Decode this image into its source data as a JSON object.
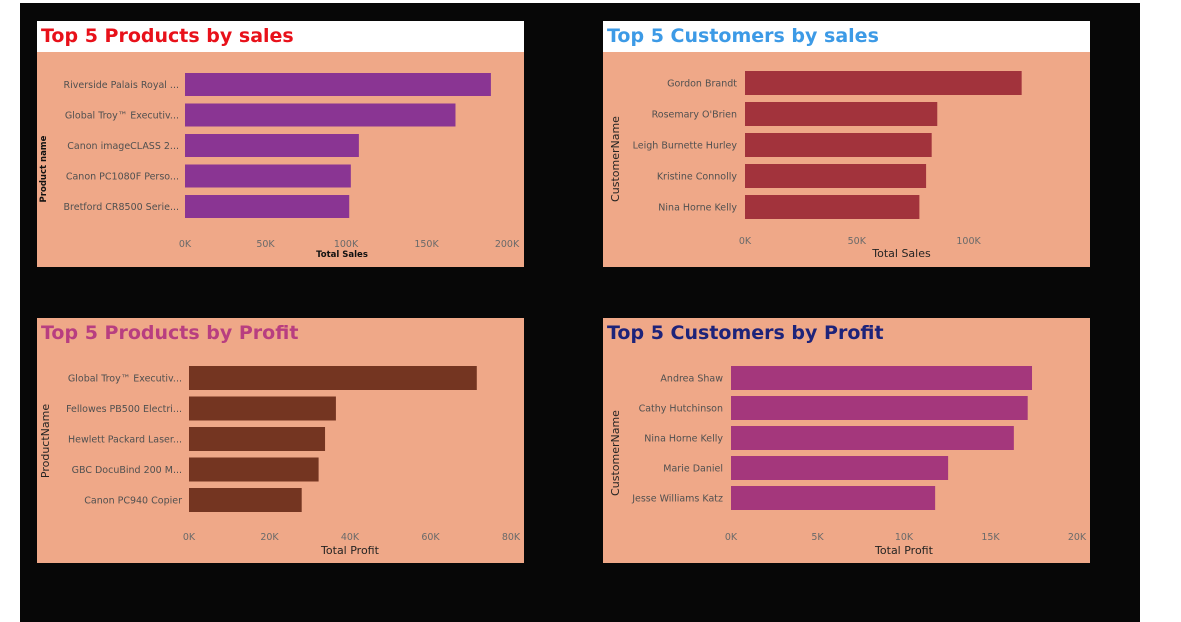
{
  "charts": [
    {
      "title": "Top 5 Products by sales",
      "title_color": "#e8111a",
      "title_bg": "white",
      "bar_color": "#8a3593",
      "axis_style": "bold-small",
      "chart_data": {
        "type": "bar",
        "orientation": "horizontal",
        "categories": [
          "Riverside Palais Royal ...",
          "Global Troy™ Executiv...",
          "Canon imageCLASS 2...",
          "Canon PC1080F Perso...",
          "Bretford CR8500 Serie..."
        ],
        "values": [
          190000,
          168000,
          108000,
          103000,
          102000
        ],
        "xticks": [
          "0K",
          "50K",
          "100K",
          "150K",
          "200K"
        ],
        "xlim": [
          0,
          200000
        ],
        "xlabel": "Total Sales",
        "ylabel": "Product name"
      }
    },
    {
      "title": "Top 5 Customers by sales",
      "title_color": "#3c9ae6",
      "title_bg": "white",
      "bar_color": "#a2333c",
      "axis_style": "normal",
      "chart_data": {
        "type": "bar",
        "orientation": "horizontal",
        "categories": [
          "Gordon Brandt",
          "Rosemary O'Brien",
          "Leigh Burnette Hurley",
          "Kristine Connolly",
          "Nina Horne Kelly"
        ],
        "values": [
          123745,
          86000,
          83500,
          81000,
          78000
        ],
        "xticks": [
          "0K",
          "50K",
          "100K"
        ],
        "xlim": [
          0,
          140000
        ],
        "xlabel": "Total Sales",
        "ylabel": "CustomerName"
      }
    },
    {
      "title": "Top 5 Products by Profit",
      "title_color": "#b83e80",
      "title_bg": "none",
      "bar_color": "#743521",
      "axis_style": "normal",
      "chart_data": {
        "type": "bar",
        "orientation": "horizontal",
        "categories": [
          "Global Troy™ Executiv...",
          "Fellowes PB500 Electri...",
          "Hewlett Packard Laser...",
          "GBC DocuBind 200 M...",
          "Canon PC940 Copier"
        ],
        "values": [
          71500,
          36500,
          33800,
          32200,
          28000
        ],
        "xticks": [
          "0K",
          "20K",
          "40K",
          "60K",
          "80K"
        ],
        "xlim": [
          0,
          80000
        ],
        "xlabel": "Total Profit",
        "ylabel": "ProductName"
      }
    },
    {
      "title": "Top 5 Customers by Profit",
      "title_color": "#1d237a",
      "title_bg": "none",
      "bar_color": "#a4377c",
      "axis_style": "normal",
      "chart_data": {
        "type": "bar",
        "orientation": "horizontal",
        "categories": [
          "Andrea Shaw",
          "Cathy Hutchinson",
          "Nina Horne Kelly",
          "Marie Daniel",
          "Jesse Williams Katz"
        ],
        "values": [
          17400,
          17150,
          16350,
          12550,
          11800
        ],
        "xticks": [
          "0K",
          "5K",
          "10K",
          "15K",
          "20K"
        ],
        "xlim": [
          0,
          20000
        ],
        "xlabel": "Total Profit",
        "ylabel": "CustomerName"
      }
    }
  ]
}
